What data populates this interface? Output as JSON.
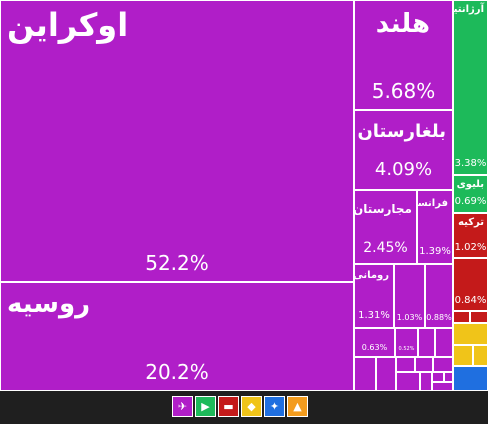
{
  "chart_data": {
    "type": "treemap",
    "items": [
      {
        "label": "اوکراین",
        "value": 52.2,
        "value_label": "52.2%",
        "color": "#b01ec8",
        "size": "xl"
      },
      {
        "label": "روسیه",
        "value": 20.2,
        "value_label": "20.2%",
        "color": "#b01ec8",
        "size": "lg"
      },
      {
        "label": "هلند",
        "value": 5.68,
        "value_label": "5.68%",
        "color": "#b01ec8",
        "size": "lg"
      },
      {
        "label": "بلغارستان",
        "value": 4.09,
        "value_label": "4.09%",
        "color": "#b01ec8",
        "size": "md"
      },
      {
        "label": "مجارستان",
        "value": 2.45,
        "value_label": "2.45%",
        "color": "#b01ec8",
        "size": "sm"
      },
      {
        "label": "فرانسه",
        "value": 1.39,
        "value_label": "1.39%",
        "color": "#b01ec8",
        "size": "xs"
      },
      {
        "label": "رومانی",
        "value": 1.31,
        "value_label": "1.31%",
        "color": "#b01ec8",
        "size": "xs"
      },
      {
        "label": "",
        "value": 1.03,
        "value_label": "1.03%",
        "color": "#b01ec8",
        "size": "xxs"
      },
      {
        "label": "",
        "value": 0.88,
        "value_label": "0.88%",
        "color": "#b01ec8",
        "size": "xxs"
      },
      {
        "label": "",
        "value": 0.63,
        "value_label": "0.63%",
        "color": "#b01ec8",
        "size": "xxs"
      },
      {
        "label": "",
        "value": 0.52,
        "value_label": "0.52%",
        "color": "#b01ec8",
        "size": "tiny"
      },
      {
        "label": "آرژانتین",
        "value": 3.38,
        "value_label": "3.38%",
        "color": "#1dba5a",
        "size": "xs"
      },
      {
        "label": "بلیوی",
        "value": 0.69,
        "value_label": "0.69%",
        "color": "#1dba5a",
        "size": "xs"
      },
      {
        "label": "ترکیه",
        "value": 1.02,
        "value_label": "1.02%",
        "color": "#c41a1a",
        "size": "xs"
      },
      {
        "label": "",
        "value": 0.84,
        "value_label": "0.84%",
        "color": "#c41a1a",
        "size": "xs"
      }
    ],
    "legend": [
      {
        "icon": "europe-icon",
        "color": "#b01ec8",
        "glyph": "✈"
      },
      {
        "icon": "south-america-icon",
        "color": "#1dba5a",
        "glyph": "▶"
      },
      {
        "icon": "asia-icon",
        "color": "#c41a1a",
        "glyph": "▬"
      },
      {
        "icon": "africa-icon",
        "color": "#f0c419",
        "glyph": "◆"
      },
      {
        "icon": "north-america-icon",
        "color": "#1f6fe0",
        "glyph": "✦"
      },
      {
        "icon": "oceania-icon",
        "color": "#f39c1e",
        "glyph": "▲"
      }
    ]
  }
}
